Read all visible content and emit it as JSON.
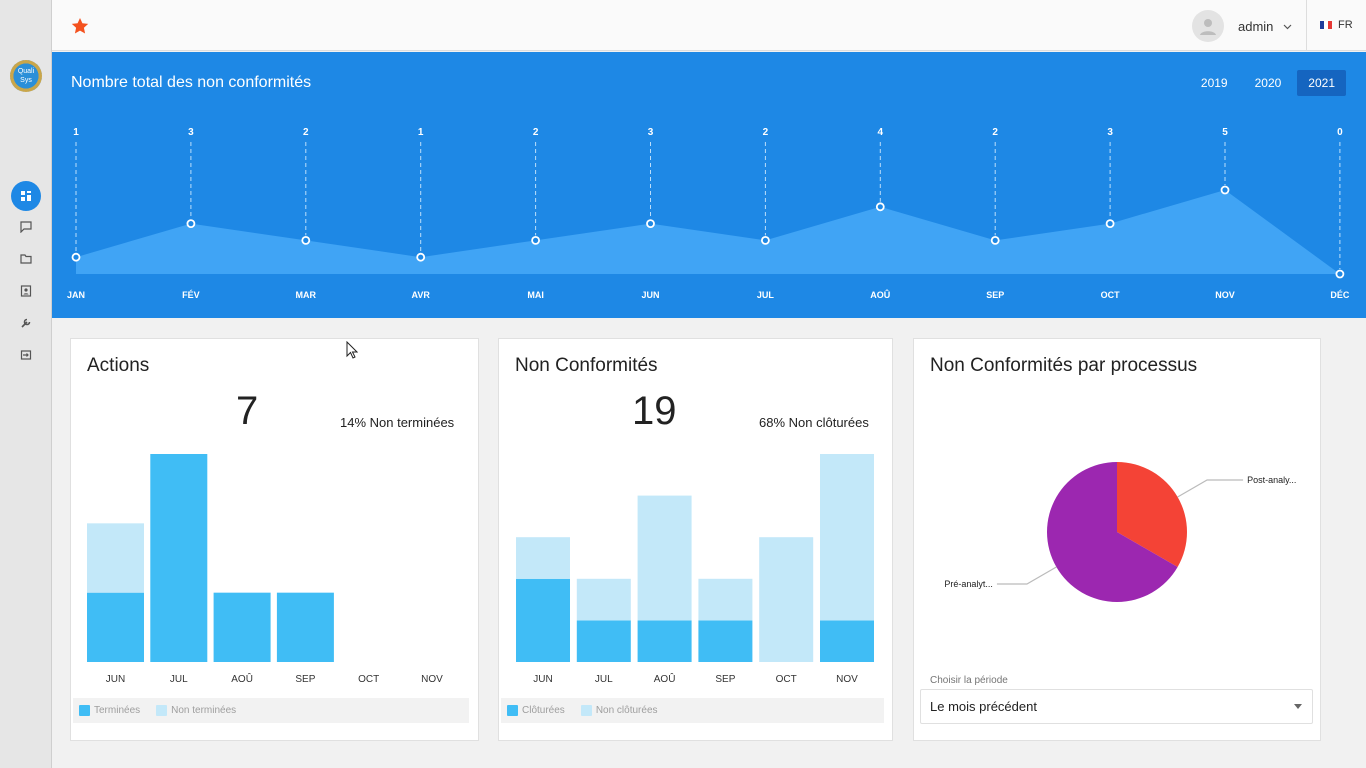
{
  "sidebar": {
    "logo_text_1": "Quali",
    "logo_text_2": "Sys",
    "items": [
      {
        "icon": "dashboard-icon",
        "active": true
      },
      {
        "icon": "comment-icon",
        "active": false
      },
      {
        "icon": "folder-icon",
        "active": false
      },
      {
        "icon": "contact-card-icon",
        "active": false
      },
      {
        "icon": "wrench-icon",
        "active": false
      },
      {
        "icon": "logout-icon",
        "active": false
      }
    ]
  },
  "topbar": {
    "favorite_icon": "star-icon",
    "username": "admin",
    "language": "FR"
  },
  "banner": {
    "title": "Nombre total des non conformités",
    "years": [
      "2019",
      "2020",
      "2021"
    ],
    "active_year": "2021"
  },
  "chart_data": [
    {
      "type": "area",
      "title": "Nombre total des non conformités",
      "categories": [
        "JAN",
        "FÉV",
        "MAR",
        "AVR",
        "MAI",
        "JUN",
        "JUL",
        "AOÛ",
        "SEP",
        "OCT",
        "NOV",
        "DÉC"
      ],
      "values": [
        1,
        3,
        2,
        1,
        2,
        3,
        2,
        4,
        2,
        3,
        5,
        0
      ],
      "ylim": [
        0,
        5
      ]
    },
    {
      "type": "bar",
      "title": "Actions",
      "categories": [
        "JUN",
        "JUL",
        "AOÛ",
        "SEP",
        "OCT",
        "NOV"
      ],
      "series": [
        {
          "name": "Terminées",
          "color": "#40bdf5",
          "values": [
            1,
            3,
            1,
            1,
            0,
            0
          ]
        },
        {
          "name": "Non terminées",
          "color": "#c3e8f9",
          "values": [
            1,
            0,
            0,
            0,
            0,
            0
          ]
        }
      ],
      "ylim": [
        0,
        3
      ]
    },
    {
      "type": "bar",
      "title": "Non Conformités",
      "categories": [
        "JUN",
        "JUL",
        "AOÛ",
        "SEP",
        "OCT",
        "NOV"
      ],
      "series": [
        {
          "name": "Clôturées",
          "color": "#40bdf5",
          "values": [
            2,
            1,
            1,
            1,
            0,
            1
          ]
        },
        {
          "name": "Non clôturées",
          "color": "#c3e8f9",
          "values": [
            1,
            1,
            3,
            1,
            3,
            4
          ]
        }
      ],
      "ylim": [
        0,
        5
      ]
    },
    {
      "type": "pie",
      "title": "Non Conformités par processus",
      "slices": [
        {
          "label": "Post-analy...",
          "value": 1,
          "color": "#f44336"
        },
        {
          "label": "Pré-analyt...",
          "value": 2,
          "color": "#9c27b0"
        }
      ]
    }
  ],
  "actions_card": {
    "title": "Actions",
    "total": "7",
    "percent_text": "14% Non terminées",
    "legend": [
      "Terminées",
      "Non terminées"
    ]
  },
  "nc_card": {
    "title": "Non Conformités",
    "total": "19",
    "percent_text": "68% Non clôturées",
    "legend": [
      "Clôturées",
      "Non clôturées"
    ]
  },
  "process_card": {
    "title": "Non Conformités par processus",
    "period_label": "Choisir la période",
    "period_value": "Le mois précédent"
  },
  "colors": {
    "primary": "#1e88e5",
    "bar_dark": "#40bdf5",
    "bar_light": "#c3e8f9",
    "area_fill": "#42a5f5",
    "flag_blue": "#1f3c9a",
    "flag_red": "#e53935"
  }
}
